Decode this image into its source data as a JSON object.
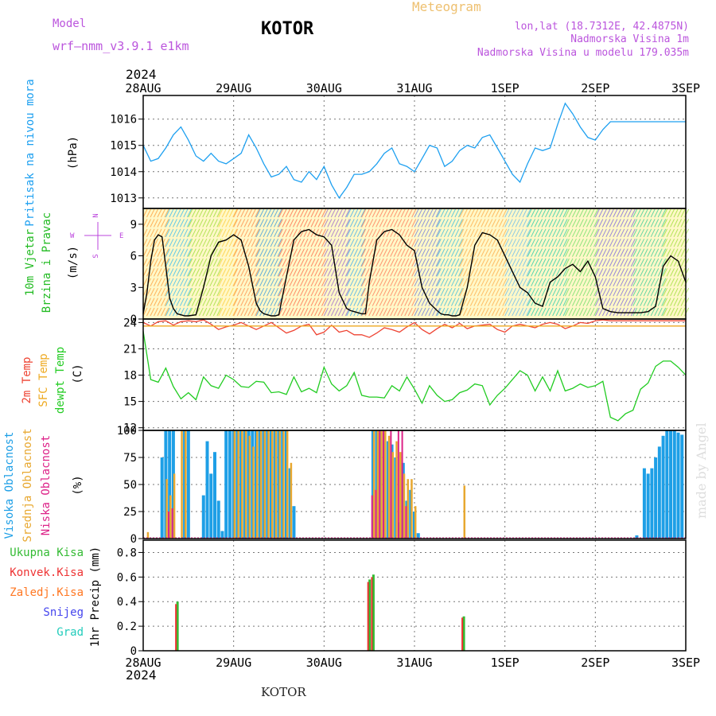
{
  "header": {
    "model_label": "Model",
    "model_name": "wrf—nmm_v3.9.1 e1km",
    "city": "KOTOR",
    "product": "Meteogram",
    "coords": "lon,lat (18.7312E, 42.4875N)",
    "elevation": "Nadmorska Visina 1m",
    "model_elevation": "Nadmorska Visina u modelu 179.035m",
    "year": "2024",
    "footer_city": "KOTOR",
    "watermark": "made by Angel"
  },
  "colors": {
    "pressure": "#1ea0f0",
    "temp2m": "#ee4433",
    "sfc_temp": "#eeaa22",
    "dewpt": "#22cc22",
    "high_cloud": "#1e9fe6",
    "mid_cloud": "#e8a830",
    "low_cloud": "#dd2288",
    "total_precip": "#33bb33",
    "conv_precip": "#ee3333",
    "frz_precip": "#ff7722",
    "snow": "#4444ee",
    "hail": "#22ccbb",
    "wind_label": "#22bb22",
    "compass": "#bb44dd"
  },
  "x_axis": {
    "ticks": [
      "28AUG",
      "29AUG",
      "30AUG",
      "31AUG",
      "1SEP",
      "2SEP",
      "3SEP"
    ]
  },
  "panels": {
    "pressure": {
      "label": "Pritisak na nivou mora",
      "unit": "(hPa)",
      "ticks": [
        "1013",
        "1014",
        "1015",
        "1016"
      ]
    },
    "wind": {
      "label1": "10m Vjetar",
      "label2": "Brzina i Pravac",
      "unit": "(m/s)",
      "ticks": [
        "0",
        "3",
        "6",
        "9"
      ],
      "compass": {
        "n": "N",
        "s": "S",
        "w": "W",
        "e": "E"
      }
    },
    "temp": {
      "label1": "2m Temp",
      "label2": "SFC Temp",
      "label3": "dewpt Temp",
      "unit": "(C)",
      "ticks": [
        "12",
        "15",
        "18",
        "21",
        "24"
      ]
    },
    "cloud": {
      "label1": "Visoka Oblacnost",
      "label2": "Srednja Oblacnost",
      "label3": "Niska Oblacnost",
      "unit": "(%)",
      "ticks": [
        "0",
        "25",
        "50",
        "75",
        "100"
      ]
    },
    "precip": {
      "legend": [
        "Ukupna Kisa",
        "Konvek.Kisa",
        "Zaledj.Kisa",
        "Snijeg",
        "Grad"
      ],
      "unit": "1hr Precip (mm)",
      "ticks": [
        "0",
        "0.2",
        "0.4",
        "0.6",
        "0.8"
      ]
    }
  },
  "chart_data": [
    {
      "type": "line",
      "title": "Pritisak na nivou mora",
      "ylabel": "(hPa)",
      "ylim": [
        1012.6,
        1016.9
      ],
      "xlim": [
        0,
        144
      ],
      "series": [
        {
          "name": "Pritisak na nivou mora",
          "x": [
            0,
            2,
            4,
            6,
            8,
            10,
            12,
            14,
            16,
            18,
            20,
            22,
            24,
            26,
            28,
            30,
            32,
            34,
            36,
            38,
            40,
            42,
            44,
            46,
            48,
            50,
            52,
            54,
            56,
            58,
            60,
            62,
            64,
            66,
            68,
            70,
            72,
            74,
            76,
            78,
            80,
            82,
            84,
            86,
            88,
            90,
            92,
            94,
            96,
            98,
            100,
            102,
            104,
            106,
            108,
            110,
            112,
            114,
            116,
            118,
            120,
            122,
            124,
            126,
            128,
            130,
            132,
            134,
            136,
            138,
            140,
            142,
            144
          ],
          "values": [
            1015.0,
            1014.4,
            1014.5,
            1014.9,
            1015.4,
            1015.7,
            1015.2,
            1014.6,
            1014.4,
            1014.7,
            1014.4,
            1014.3,
            1014.5,
            1014.7,
            1015.4,
            1014.9,
            1014.3,
            1013.8,
            1013.9,
            1014.2,
            1013.7,
            1013.6,
            1014.0,
            1013.7,
            1014.2,
            1013.5,
            1013.0,
            1013.4,
            1013.9,
            1013.9,
            1014.0,
            1014.3,
            1014.7,
            1014.9,
            1014.3,
            1014.2,
            1014.0,
            1014.5,
            1015.0,
            1014.9,
            1014.2,
            1014.4,
            1014.8,
            1015.0,
            1014.9,
            1015.3,
            1015.4,
            1014.9,
            1014.4,
            1013.9,
            1013.6,
            1014.3,
            1014.9,
            1014.8,
            1014.9,
            1015.8,
            1016.6,
            1016.2,
            1015.7,
            1015.3,
            1015.2,
            1015.6,
            1015.9,
            1015.9,
            1015.9,
            1015.9,
            1015.9,
            1015.9,
            1015.9,
            1015.9,
            1015.9,
            1015.9,
            1015.9
          ]
        }
      ]
    },
    {
      "type": "line",
      "title": "10m Vjetar Brzina i Pravac",
      "ylabel": "(m/s)",
      "ylim": [
        0,
        10.5
      ],
      "xlim": [
        0,
        144
      ],
      "series": [
        {
          "name": "10m Vjetar",
          "x": [
            0,
            1,
            2,
            3,
            4,
            5,
            6,
            7,
            8,
            9,
            10,
            11,
            12,
            14,
            16,
            18,
            20,
            22,
            24,
            26,
            28,
            30,
            31,
            32,
            33,
            34,
            35,
            36,
            38,
            40,
            42,
            44,
            46,
            48,
            50,
            52,
            54,
            55,
            56,
            57,
            58,
            59,
            60,
            62,
            64,
            66,
            68,
            70,
            72,
            74,
            76,
            78,
            79,
            80,
            81,
            82,
            83,
            84,
            86,
            88,
            90,
            92,
            94,
            96,
            98,
            100,
            102,
            103,
            104,
            106,
            108,
            110,
            112,
            114,
            116,
            118,
            120,
            122,
            124,
            126,
            128,
            130,
            132,
            134,
            136,
            138,
            140,
            142,
            144
          ],
          "values": [
            0.5,
            2.5,
            5.5,
            7.5,
            8.0,
            7.8,
            5.0,
            2.0,
            1.0,
            0.5,
            0.4,
            0.3,
            0.3,
            0.4,
            3.0,
            6.0,
            7.3,
            7.5,
            8.0,
            7.5,
            5.0,
            1.5,
            0.8,
            0.5,
            0.4,
            0.3,
            0.3,
            0.4,
            4.0,
            7.5,
            8.3,
            8.5,
            8.0,
            7.8,
            7.0,
            2.5,
            1.0,
            0.8,
            0.7,
            0.6,
            0.5,
            0.5,
            3.5,
            7.5,
            8.3,
            8.5,
            8.0,
            7.0,
            6.5,
            3.0,
            1.5,
            0.8,
            0.5,
            0.4,
            0.4,
            0.3,
            0.3,
            0.4,
            3.0,
            7.0,
            8.2,
            8.0,
            7.5,
            6.0,
            4.5,
            3.0,
            2.5,
            2.0,
            1.5,
            1.2,
            3.5,
            4.0,
            4.8,
            5.2,
            4.5,
            5.5,
            4.0,
            1.0,
            0.7,
            0.6,
            0.6,
            0.6,
            0.6,
            0.7,
            1.2,
            5.0,
            6.0,
            5.5,
            3.5
          ]
        }
      ]
    },
    {
      "type": "line",
      "title": "Temperatura",
      "ylabel": "(C)",
      "ylim": [
        11.7,
        24.4
      ],
      "xlim": [
        0,
        144
      ],
      "series": [
        {
          "name": "2m Temp",
          "x": [
            0,
            2,
            4,
            6,
            8,
            10,
            12,
            14,
            16,
            18,
            20,
            22,
            24,
            26,
            28,
            30,
            32,
            34,
            36,
            38,
            40,
            42,
            44,
            46,
            48,
            50,
            52,
            54,
            56,
            58,
            60,
            62,
            64,
            66,
            68,
            70,
            72,
            74,
            76,
            78,
            80,
            82,
            84,
            86,
            88,
            90,
            92,
            94,
            96,
            98,
            100,
            102,
            104,
            106,
            108,
            110,
            112,
            114,
            116,
            118,
            120,
            122,
            124,
            126,
            128,
            130,
            132,
            134,
            136,
            138,
            140,
            142,
            144
          ],
          "values": [
            24.0,
            23.6,
            24.1,
            24.2,
            23.7,
            24.1,
            24.2,
            24.1,
            24.3,
            23.8,
            23.2,
            23.5,
            23.7,
            24.0,
            23.6,
            23.2,
            23.6,
            24.0,
            23.4,
            22.8,
            23.1,
            23.6,
            23.8,
            22.6,
            22.9,
            23.7,
            22.9,
            23.1,
            22.6,
            22.6,
            22.3,
            22.8,
            23.4,
            23.2,
            22.9,
            23.5,
            24.0,
            23.2,
            22.7,
            23.3,
            23.8,
            23.4,
            23.9,
            23.3,
            23.6,
            23.7,
            23.8,
            23.2,
            22.9,
            23.6,
            23.8,
            23.6,
            23.4,
            23.8,
            24.0,
            23.8,
            23.3,
            23.6,
            24.0,
            23.9,
            24.2,
            24.3,
            24.2,
            24.2,
            24.2,
            24.2,
            24.2,
            24.2,
            24.2,
            24.2,
            24.2,
            24.2,
            24.2
          ]
        },
        {
          "name": "SFC Temp",
          "x": [
            0,
            144
          ],
          "values": [
            23.6,
            23.6
          ]
        },
        {
          "name": "dewpt Temp",
          "x": [
            0,
            2,
            4,
            6,
            8,
            10,
            12,
            14,
            16,
            18,
            20,
            22,
            24,
            26,
            28,
            30,
            32,
            34,
            36,
            38,
            40,
            42,
            44,
            46,
            48,
            50,
            52,
            54,
            56,
            58,
            60,
            62,
            64,
            66,
            68,
            70,
            72,
            74,
            76,
            78,
            80,
            82,
            84,
            86,
            88,
            90,
            92,
            94,
            96,
            98,
            100,
            102,
            104,
            106,
            108,
            110,
            112,
            114,
            116,
            118,
            120,
            122,
            124,
            126,
            128,
            130,
            132,
            134,
            136,
            138,
            140,
            142,
            144
          ],
          "values": [
            23.0,
            17.5,
            17.2,
            18.8,
            16.7,
            15.3,
            16.0,
            15.2,
            17.8,
            16.8,
            16.5,
            18.0,
            17.5,
            16.7,
            16.6,
            17.3,
            17.2,
            16.0,
            16.1,
            15.8,
            17.8,
            16.1,
            16.5,
            16.0,
            18.9,
            17.0,
            16.2,
            16.8,
            18.3,
            15.7,
            15.5,
            15.5,
            15.4,
            16.8,
            16.2,
            17.8,
            16.4,
            14.8,
            16.8,
            15.7,
            15.0,
            15.2,
            16.0,
            16.3,
            17.0,
            16.8,
            14.6,
            15.7,
            16.5,
            17.5,
            18.5,
            18.0,
            16.2,
            17.8,
            16.2,
            18.5,
            16.2,
            16.5,
            17.0,
            16.6,
            16.8,
            17.3,
            13.2,
            12.8,
            13.6,
            14.0,
            16.4,
            17.1,
            19.0,
            19.6,
            19.6,
            18.9,
            18.0
          ]
        }
      ]
    },
    {
      "type": "bar",
      "title": "Oblacnost",
      "ylabel": "(%)",
      "ylim": [
        0,
        100
      ],
      "xlim": [
        0,
        144
      ],
      "series": [
        {
          "name": "Visoka Oblacnost",
          "x": [
            5,
            6,
            7,
            8,
            11,
            12,
            16,
            17,
            18,
            19,
            20,
            21,
            22,
            23,
            24,
            25,
            26,
            27,
            28,
            29,
            30,
            31,
            32,
            33,
            34,
            35,
            36,
            37,
            38,
            39,
            40,
            61,
            62,
            63,
            64,
            65,
            66,
            67,
            68,
            69,
            70,
            71,
            72,
            73,
            131,
            133,
            134,
            135,
            136,
            137,
            138,
            139,
            140,
            141,
            142,
            143
          ],
          "values": [
            75,
            100,
            100,
            100,
            100,
            100,
            40,
            90,
            60,
            80,
            35,
            7,
            100,
            100,
            100,
            100,
            100,
            100,
            100,
            100,
            100,
            100,
            100,
            100,
            100,
            100,
            100,
            100,
            100,
            65,
            30,
            100,
            100,
            100,
            100,
            90,
            87,
            75,
            15,
            70,
            35,
            45,
            25,
            5,
            3,
            65,
            60,
            65,
            75,
            85,
            95,
            100,
            100,
            100,
            98,
            96
          ]
        },
        {
          "name": "Srednja Oblacnost",
          "x": [
            1,
            6,
            7,
            8,
            10,
            11,
            24,
            25,
            26,
            27,
            28,
            29,
            30,
            31,
            32,
            33,
            34,
            35,
            36,
            37,
            38,
            39,
            61,
            62,
            63,
            64,
            65,
            66,
            67,
            68,
            69,
            70,
            71,
            72,
            85
          ],
          "values": [
            6,
            55,
            40,
            60,
            100,
            100,
            100,
            100,
            100,
            100,
            95,
            85,
            100,
            100,
            100,
            100,
            100,
            100,
            100,
            100,
            100,
            70,
            100,
            100,
            100,
            100,
            95,
            80,
            90,
            80,
            60,
            55,
            55,
            30,
            49
          ]
        },
        {
          "name": "Niska Oblacnost",
          "x": [
            7,
            8,
            61,
            62,
            63,
            64,
            66,
            68,
            69,
            70
          ],
          "values": [
            25,
            28,
            40,
            45,
            100,
            100,
            100,
            100,
            100,
            30
          ]
        }
      ]
    },
    {
      "type": "bar",
      "title": "1hr Precip",
      "ylabel": "1hr Precip (mm)",
      "ylim": [
        0,
        0.9
      ],
      "xlim": [
        0,
        144
      ],
      "series": [
        {
          "name": "Ukupna Kisa",
          "x": [
            9,
            60,
            61,
            85
          ],
          "values": [
            0.4,
            0.58,
            0.62,
            0.28
          ]
        },
        {
          "name": "Konvek.Kisa",
          "x": [
            9,
            60,
            61,
            85
          ],
          "values": [
            0.38,
            0.56,
            0.6,
            0.27
          ]
        },
        {
          "name": "Zaledj.Kisa",
          "x": [],
          "values": []
        },
        {
          "name": "Snijeg",
          "x": [],
          "values": []
        },
        {
          "name": "Grad",
          "x": [],
          "values": []
        }
      ]
    }
  ]
}
